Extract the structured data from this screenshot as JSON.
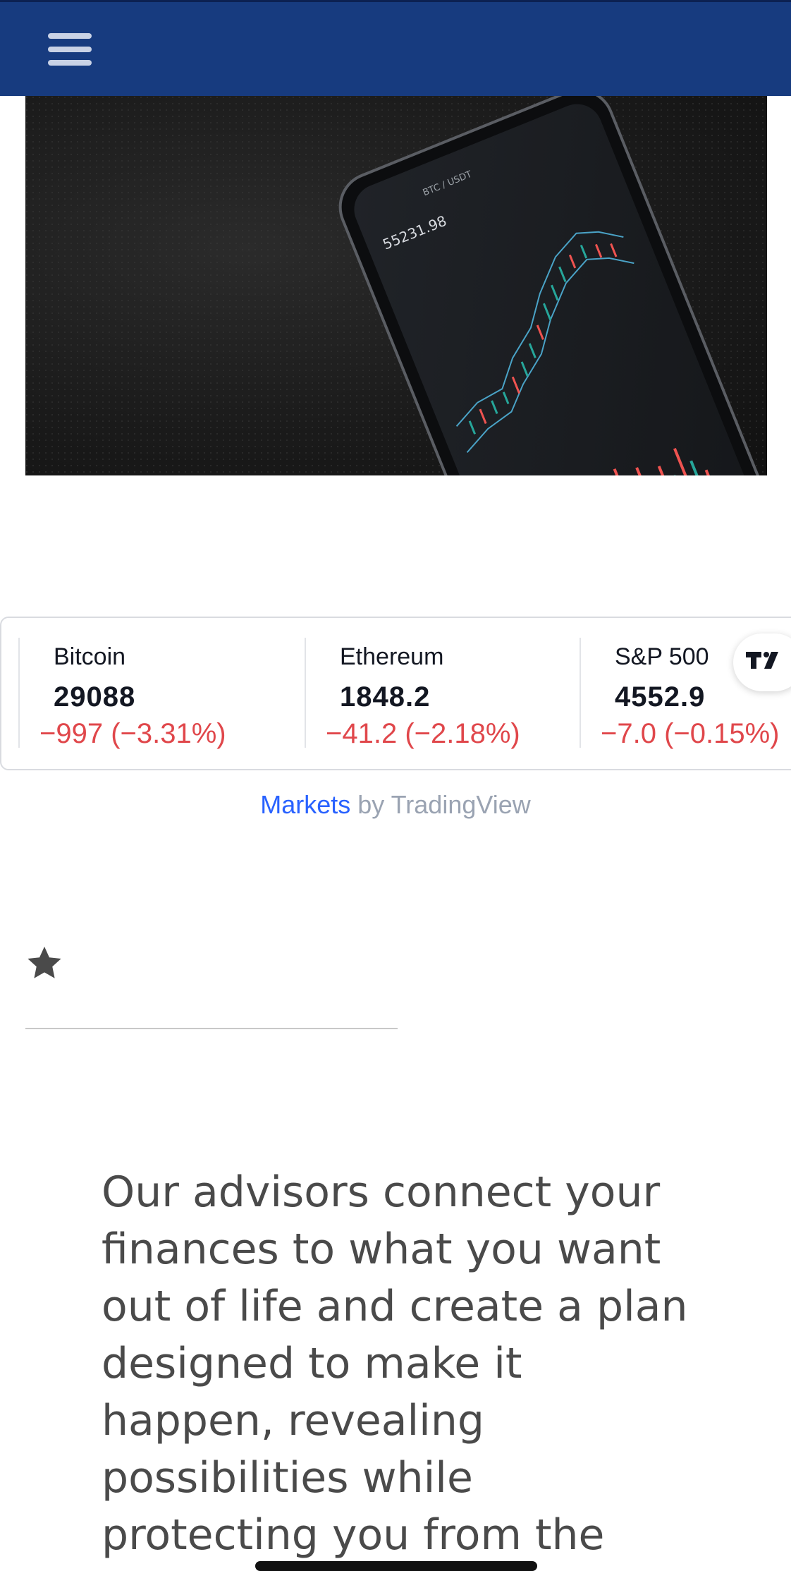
{
  "header": {
    "menu_icon": "hamburger-menu-icon",
    "background": "#173b7f"
  },
  "hero": {
    "phone_price": "55231.98",
    "phone_pair": "BTC / USDT"
  },
  "ticker": {
    "items": [
      {
        "name": "Bitcoin",
        "price": "29088",
        "change": "−997 (−3.31%)"
      },
      {
        "name": "Ethereum",
        "price": "1848.2",
        "change": "−41.2 (−2.18%)"
      },
      {
        "name": "S&P 500",
        "price": "4552.9",
        "change": "−7.0 (−0.15%)"
      }
    ],
    "negative_color": "#e0474b"
  },
  "attribution": {
    "link_text": "Markets",
    "suffix": " by TradingView"
  },
  "content": {
    "star_icon": "star-icon",
    "mission": "Our advisors connect your finances to what you want out of life and create a plan designed to make it happen, revealing possibilities while protecting you from the"
  }
}
